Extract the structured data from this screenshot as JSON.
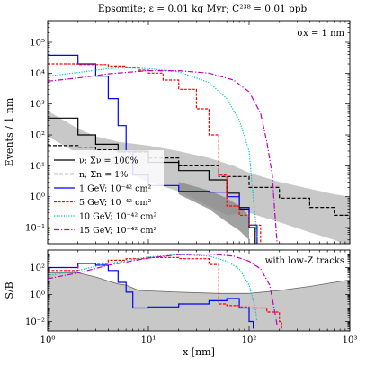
{
  "chart_data": {
    "type": "line",
    "title": "Epsomite; ε = 0.01 kg Myr; C²³⁸ = 0.01 ppb",
    "x_scale": "log",
    "xlabel": "x [nm]",
    "xlim": [
      1,
      1000
    ],
    "x_tick_labels": [
      "10⁰",
      "10¹",
      "10²",
      "10³"
    ],
    "grid": false,
    "top_panel": {
      "ylabel": "Events / 1 nm",
      "y_scale": "log",
      "ylim": [
        0.03,
        500000
      ],
      "y_tick_labels": [
        "10⁻¹",
        "10⁰",
        "10¹",
        "10²",
        "10³",
        "10⁴",
        "10⁵"
      ],
      "annotation": "σx = 1 nm",
      "legend_placement": "center-left",
      "series": [
        {
          "name": "ν; Σν = 100%",
          "color": "#000000",
          "dash": "",
          "style": "step",
          "x": [
            1,
            2,
            3,
            5,
            10,
            20,
            40,
            60,
            80,
            100,
            115
          ],
          "y": [
            350,
            100,
            50,
            30,
            13,
            7,
            3.5,
            1.3,
            0.4,
            0.1,
            0.03
          ]
        },
        {
          "name": "n; Σn = 1%",
          "color": "#000000",
          "dash": "4,2",
          "style": "step",
          "x": [
            1,
            2,
            3,
            5,
            10,
            20,
            50,
            100,
            200,
            400,
            700,
            1000
          ],
          "y": [
            45,
            40,
            33,
            28,
            18,
            10,
            4.5,
            2,
            0.9,
            0.45,
            0.25,
            0.17
          ]
        },
        {
          "name": "1 GeV; 10⁻⁴² cm²",
          "color": "#0000ff",
          "dash": "",
          "style": "step",
          "x": [
            1,
            2,
            3,
            4,
            5,
            6,
            7,
            10,
            20,
            40,
            60,
            80,
            100,
            120
          ],
          "y": [
            38000,
            20000,
            8000,
            1500,
            200,
            30,
            5,
            2.3,
            1.5,
            1.4,
            1,
            0.45,
            0.12,
            0.03
          ]
        },
        {
          "name": "5 GeV; 10⁻⁴² cm²",
          "color": "#ff0000",
          "dash": "3,1.5",
          "style": "step",
          "x": [
            1,
            2,
            4,
            6,
            8,
            10,
            14,
            20,
            30,
            40,
            50,
            60,
            80,
            100,
            130
          ],
          "y": [
            20000,
            19000,
            17000,
            15000,
            12500,
            10000,
            6000,
            3000,
            700,
            100,
            5,
            0.5,
            0.25,
            0.12,
            0.03
          ]
        },
        {
          "name": "10 GeV; 10⁻⁴² cm²",
          "color": "#00bfbf",
          "dash": "1.2,1.5",
          "style": "smooth",
          "x": [
            1,
            2,
            4,
            6,
            10,
            20,
            40,
            60,
            80,
            100,
            110,
            120
          ],
          "y": [
            8000,
            10500,
            14000,
            15000,
            14000,
            11000,
            5000,
            1500,
            300,
            30,
            1,
            0.05
          ]
        },
        {
          "name": "15 GeV; 10⁻⁴² cm²",
          "color": "#bf00bf",
          "dash": "6,2,1.2,2",
          "style": "smooth",
          "x": [
            1,
            2,
            4,
            10,
            20,
            40,
            70,
            100,
            130,
            150,
            170,
            180,
            190
          ],
          "y": [
            5500,
            7000,
            9500,
            12000,
            12000,
            10000,
            6000,
            2500,
            500,
            60,
            5,
            0.3,
            0.03
          ]
        }
      ]
    },
    "bottom_panel": {
      "ylabel": "S/B",
      "y_scale": "log",
      "ylim": [
        0.002,
        2000
      ],
      "y_tick_labels": [
        "10⁻²",
        "10⁰",
        "10²"
      ],
      "annotation": "with low-Z tracks",
      "series": [
        {
          "name": "1 GeV; 10⁻⁴² cm²",
          "color": "#0000ff",
          "dash": "",
          "style": "step",
          "x": [
            1,
            2,
            3,
            4,
            5,
            6,
            7,
            10,
            20,
            40,
            60,
            80,
            100,
            110
          ],
          "y": [
            100,
            200,
            150,
            60,
            8,
            1.5,
            0.1,
            0.12,
            0.2,
            0.35,
            0.5,
            0.1,
            0.01,
            0.003
          ]
        },
        {
          "name": "5 GeV; 10⁻⁴² cm²",
          "color": "#ff0000",
          "dash": "3,1.5",
          "style": "step",
          "x": [
            1,
            2,
            4,
            6,
            10,
            20,
            40,
            50,
            60,
            80,
            100,
            150,
            200,
            210
          ],
          "y": [
            60,
            200,
            350,
            450,
            550,
            450,
            170,
            0.2,
            0.15,
            0.12,
            0.1,
            0.05,
            0.01,
            0.003
          ]
        },
        {
          "name": "10 GeV; 10⁻⁴² cm²",
          "color": "#00bfbf",
          "dash": "1.2,1.5",
          "style": "smooth",
          "x": [
            1,
            2,
            4,
            10,
            20,
            40,
            60,
            80,
            100,
            115,
            120
          ],
          "y": [
            25,
            60,
            200,
            600,
            900,
            700,
            300,
            80,
            5,
            0.1,
            0.01
          ]
        },
        {
          "name": "15 GeV; 10⁻⁴² cm²",
          "color": "#bf00bf",
          "dash": "6,2,1.2,2",
          "style": "smooth",
          "x": [
            1,
            2,
            4,
            10,
            20,
            40,
            70,
            100,
            130,
            160,
            180,
            190
          ],
          "y": [
            15,
            40,
            150,
            500,
            900,
            1000,
            700,
            300,
            80,
            5,
            0.05,
            0.005
          ]
        }
      ]
    }
  }
}
